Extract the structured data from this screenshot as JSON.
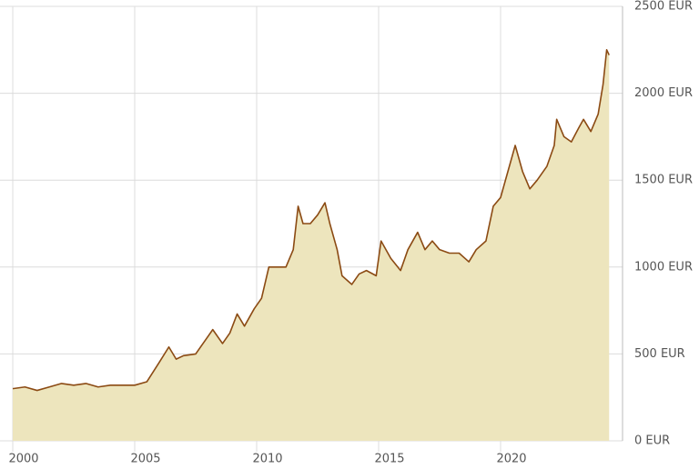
{
  "chart_data": {
    "type": "area",
    "x": [
      2000.0,
      2000.5,
      2001.0,
      2001.5,
      2002.0,
      2002.5,
      2003.0,
      2003.5,
      2004.0,
      2004.5,
      2005.0,
      2005.5,
      2006.0,
      2006.4,
      2006.7,
      2007.0,
      2007.5,
      2008.0,
      2008.2,
      2008.6,
      2008.9,
      2009.2,
      2009.5,
      2009.9,
      2010.2,
      2010.5,
      2010.9,
      2011.2,
      2011.5,
      2011.7,
      2011.9,
      2012.2,
      2012.5,
      2012.8,
      2013.0,
      2013.3,
      2013.5,
      2013.9,
      2014.2,
      2014.5,
      2014.9,
      2015.1,
      2015.5,
      2015.9,
      2016.2,
      2016.6,
      2016.9,
      2017.2,
      2017.5,
      2017.9,
      2018.3,
      2018.7,
      2019.0,
      2019.4,
      2019.7,
      2020.0,
      2020.3,
      2020.6,
      2020.9,
      2021.2,
      2021.5,
      2021.9,
      2022.2,
      2022.3,
      2022.6,
      2022.9,
      2023.2,
      2023.4,
      2023.7,
      2024.0,
      2024.2,
      2024.35,
      2024.45
    ],
    "values": [
      300,
      310,
      290,
      310,
      330,
      320,
      330,
      310,
      320,
      320,
      320,
      340,
      450,
      540,
      470,
      490,
      500,
      600,
      640,
      560,
      620,
      730,
      660,
      760,
      820,
      1000,
      1000,
      1000,
      1100,
      1350,
      1250,
      1250,
      1300,
      1370,
      1250,
      1100,
      950,
      900,
      960,
      980,
      950,
      1150,
      1050,
      980,
      1100,
      1200,
      1100,
      1150,
      1100,
      1080,
      1080,
      1030,
      1100,
      1150,
      1350,
      1400,
      1550,
      1700,
      1550,
      1450,
      1500,
      1580,
      1700,
      1850,
      1750,
      1720,
      1800,
      1850,
      1780,
      1880,
      2050,
      2250,
      2220
    ],
    "color": "#8b4a13",
    "fill_color": "#ede5bd",
    "xlim": [
      2000,
      2025
    ],
    "xticks": [
      2000,
      2005,
      2010,
      2015,
      2020
    ],
    "ylim": [
      0,
      2500
    ],
    "yticks": [
      {
        "value": 0,
        "label": "0 EUR"
      },
      {
        "value": 500,
        "label": "500 EUR"
      },
      {
        "value": 1000,
        "label": "1000 EUR"
      },
      {
        "value": 1500,
        "label": "1500 EUR"
      },
      {
        "value": 2000,
        "label": "2000 EUR"
      },
      {
        "value": 2500,
        "label": "2500 EUR"
      }
    ],
    "grid": true
  }
}
